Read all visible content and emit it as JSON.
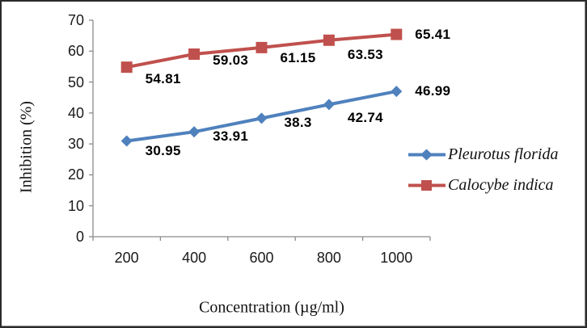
{
  "chart_data": {
    "type": "line",
    "title": "",
    "xlabel": "Concentration (µg/ml)",
    "ylabel": "Inhibition (%)",
    "categories": [
      "200",
      "400",
      "600",
      "800",
      "1000"
    ],
    "series": [
      {
        "name": "Pleurotus florida",
        "values": [
          30.95,
          33.91,
          38.3,
          42.74,
          46.99
        ],
        "data_labels": [
          "30.95",
          "33.91",
          "38.3",
          "42.74",
          "46.99"
        ],
        "color": "#4F81BD",
        "marker": "diamond"
      },
      {
        "name": "Calocybe indica",
        "values": [
          54.81,
          59.03,
          61.15,
          63.53,
          65.41
        ],
        "data_labels": [
          "54.81",
          "59.03",
          "61.15",
          "63.53",
          "65.41"
        ],
        "color": "#C0504D",
        "marker": "square"
      }
    ],
    "ylim": [
      0,
      70
    ],
    "ytick_step": 10,
    "yticks": [
      "0",
      "10",
      "20",
      "30",
      "40",
      "50",
      "60",
      "70"
    ],
    "grid": false,
    "legend_position": "right",
    "axis_color": "#8a8a8a",
    "background_color": "#ffffff"
  }
}
